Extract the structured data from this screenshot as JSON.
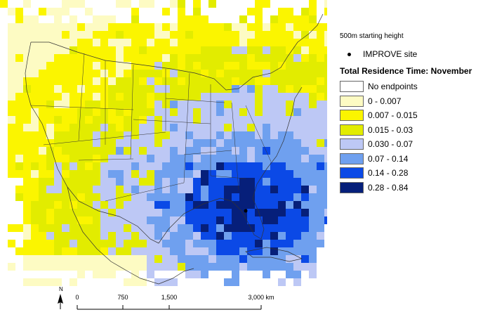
{
  "legend": {
    "caption": "500m starting height",
    "site_label": "IMPROVE site",
    "title": "Total Residence Time: November",
    "classes": [
      {
        "label": "No endpoints",
        "color": "#ffffff"
      },
      {
        "label": "0 - 0.007",
        "color": "#fdfbc3"
      },
      {
        "label": "0.007 - 0.015",
        "color": "#fbf500"
      },
      {
        "label": "0.015 - 0.03",
        "color": "#e2ec00"
      },
      {
        "label": "0.030 - 0.07",
        "color": "#bdc8f5"
      },
      {
        "label": "0.07 - 0.14",
        "color": "#6fa0ef"
      },
      {
        "label": "0.14 - 0.28",
        "color": "#0b49e6"
      },
      {
        "label": "0.28 - 0.84",
        "color": "#061f7a"
      }
    ]
  },
  "map": {
    "north_label": "N",
    "scale_ticks": [
      "0",
      "750",
      "1,500",
      "3,000 km"
    ]
  }
}
